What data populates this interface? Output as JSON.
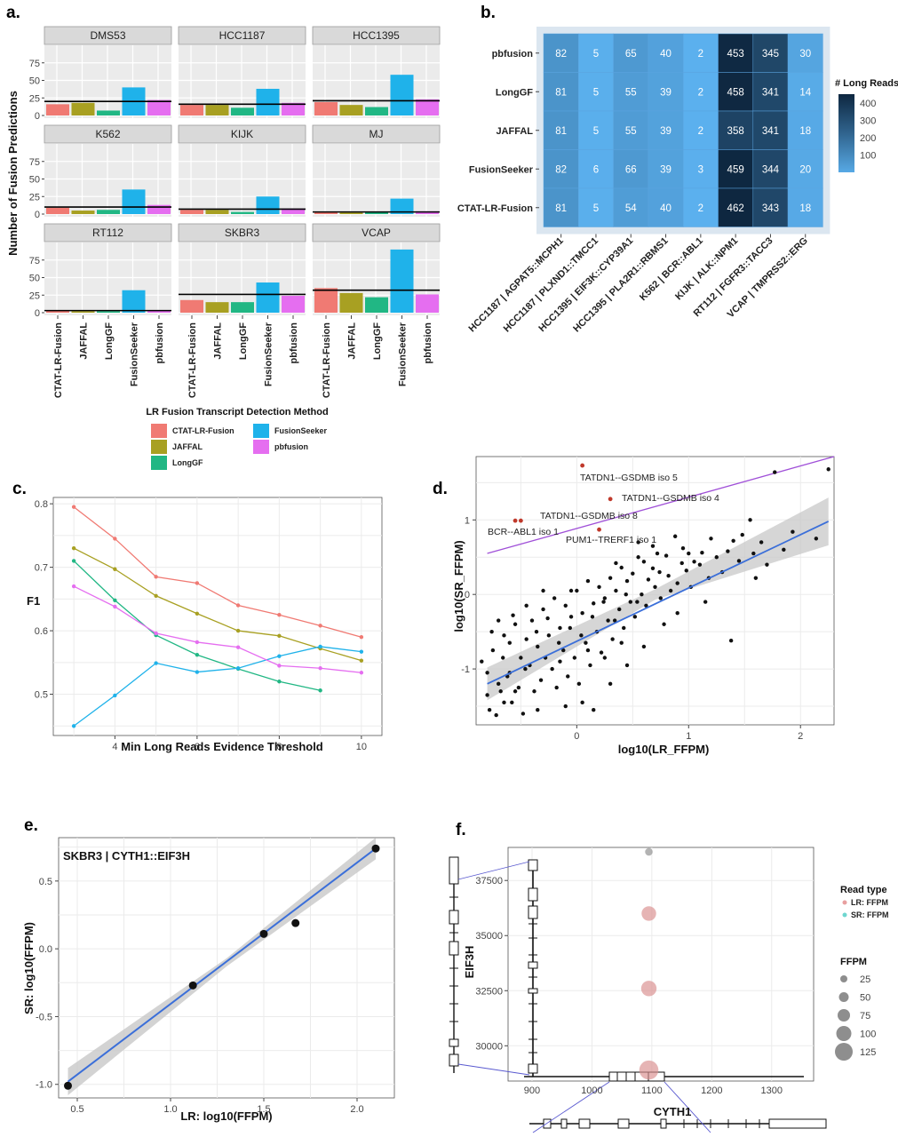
{
  "panel_labels": {
    "a": "a.",
    "b": "b.",
    "c": "c.",
    "d": "d.",
    "e": "e.",
    "f": "f."
  },
  "colors": {
    "CTAT-LR-Fusion": "#f07a73",
    "JAFFAL": "#a8a022",
    "LongGF": "#21b784",
    "FusionSeeker": "#1fb2ea",
    "pbfusion": "#e56ef0",
    "panel_bg": "#ebebeb",
    "strip_bg": "#d9d9d9",
    "heat_low": "#5bb0ee",
    "heat_high": "#0e2740",
    "line_fit": "#3b6fd9",
    "diag_line": "#a050d8",
    "highlight_point": "#c0392b"
  },
  "chart_data": [
    {
      "panel": "a",
      "type": "bar",
      "ylabel": "Number of Fusion Predictions",
      "ylim": [
        0,
        100
      ],
      "yticks": [
        "0",
        "25",
        "50",
        "75"
      ],
      "methods": [
        "CTAT-LR-Fusion",
        "JAFFAL",
        "LongGF",
        "FusionSeeker",
        "pbfusion"
      ],
      "facets": [
        {
          "name": "DMS53",
          "values": [
            16,
            18,
            7,
            40,
            22
          ],
          "hline": 20
        },
        {
          "name": "HCC1187",
          "values": [
            15,
            15,
            11,
            38,
            18
          ],
          "hline": 16
        },
        {
          "name": "HCC1395",
          "values": [
            19,
            15,
            12,
            58,
            23
          ],
          "hline": 21
        },
        {
          "name": "K562",
          "values": [
            9,
            5,
            6,
            35,
            13
          ],
          "hline": 10
        },
        {
          "name": "KIJK",
          "values": [
            6,
            6,
            3,
            25,
            8
          ],
          "hline": 7
        },
        {
          "name": "MJ",
          "values": [
            3,
            2,
            3,
            22,
            4
          ],
          "hline": 3
        },
        {
          "name": "RT112",
          "values": [
            3,
            2,
            2,
            32,
            3
          ],
          "hline": 3
        },
        {
          "name": "SKBR3",
          "values": [
            18,
            15,
            15,
            43,
            24
          ],
          "hline": 26
        },
        {
          "name": "VCAP",
          "values": [
            35,
            28,
            22,
            90,
            26
          ],
          "hline": 32
        }
      ],
      "legend_title": "LR Fusion Transcript Detection Method",
      "legend": [
        "CTAT-LR-Fusion",
        "FusionSeeker",
        "JAFFAL",
        "pbfusion",
        "LongGF"
      ]
    },
    {
      "panel": "b",
      "type": "heatmap",
      "rows": [
        "pbfusion",
        "LongGF",
        "JAFFAL",
        "FusionSeeker",
        "CTAT-LR-Fusion"
      ],
      "columns": [
        "HCC1187 | AGPAT5::MCPH1",
        "HCC1187 | PLXND1::TMCC1",
        "HCC1395 | EIF3K::CYP39A1",
        "HCC1395 | PLA2R1::RBMS1",
        "K562 | BCR::ABL1",
        "KIJK | ALK::NPM1",
        "RT112 | FGFR3::TACC3",
        "VCAP | TMPRSS2::ERG"
      ],
      "values": [
        [
          82,
          5,
          65,
          40,
          2,
          453,
          345,
          30
        ],
        [
          81,
          5,
          55,
          39,
          2,
          458,
          341,
          14
        ],
        [
          81,
          5,
          55,
          39,
          2,
          358,
          341,
          18
        ],
        [
          82,
          6,
          66,
          39,
          3,
          459,
          344,
          20
        ],
        [
          81,
          5,
          54,
          40,
          2,
          462,
          343,
          18
        ]
      ],
      "colorbar_title": "# Long Reads",
      "colorbar_ticks": [
        "400",
        "300",
        "200",
        "100"
      ],
      "range": [
        0,
        470
      ]
    },
    {
      "panel": "c",
      "type": "line",
      "xlabel": "Min Long Reads Evidence Threshold",
      "ylabel": "F1",
      "xlim": [
        2.5,
        10.5
      ],
      "ylim": [
        0.435,
        0.81
      ],
      "xticks": [
        "4",
        "6",
        "8",
        "10"
      ],
      "yticks": [
        "0.5",
        "0.6",
        "0.7",
        "0.8"
      ],
      "series": [
        {
          "name": "CTAT-LR-Fusion",
          "x": [
            3,
            4,
            5,
            6,
            7,
            8,
            9,
            10
          ],
          "y": [
            0.795,
            0.745,
            0.685,
            0.675,
            0.64,
            0.625,
            0.608,
            0.59
          ]
        },
        {
          "name": "JAFFAL",
          "x": [
            3,
            4,
            5,
            6,
            7,
            8,
            9,
            10
          ],
          "y": [
            0.73,
            0.697,
            0.655,
            0.627,
            0.6,
            0.592,
            0.572,
            0.553
          ]
        },
        {
          "name": "LongGF",
          "x": [
            3,
            4,
            5,
            6,
            7,
            8,
            9
          ],
          "y": [
            0.71,
            0.648,
            0.593,
            0.562,
            0.54,
            0.52,
            0.506
          ]
        },
        {
          "name": "FusionSeeker",
          "x": [
            3,
            4,
            5,
            6,
            7,
            8,
            9,
            10
          ],
          "y": [
            0.45,
            0.498,
            0.549,
            0.535,
            0.541,
            0.56,
            0.575,
            0.567
          ]
        },
        {
          "name": "pbfusion",
          "x": [
            3,
            4,
            5,
            6,
            7,
            8,
            9,
            10
          ],
          "y": [
            0.67,
            0.638,
            0.596,
            0.582,
            0.574,
            0.545,
            0.541,
            0.534
          ]
        }
      ]
    },
    {
      "panel": "d",
      "type": "scatter",
      "xlabel": "log10(LR_FFPM)",
      "ylabel": "log10(SR_FFPM)",
      "xlim": [
        -0.9,
        2.3
      ],
      "ylim": [
        -1.75,
        1.85
      ],
      "xticks": [
        "0",
        "1",
        "2"
      ],
      "yticks": [
        "-1",
        "0",
        "1"
      ],
      "fit": {
        "x": [
          -0.8,
          2.25
        ],
        "y": [
          -1.2,
          0.98
        ]
      },
      "diagonal": {
        "x": [
          -0.8,
          2.3
        ],
        "y": [
          0.55,
          1.85
        ]
      },
      "labeled_points": [
        {
          "label": "TATDN1--GSDMB iso 5",
          "x": 0.05,
          "y": 1.73
        },
        {
          "label": "TATDN1--GSDMB iso 4",
          "x": 0.3,
          "y": 1.28
        },
        {
          "label": "TATDN1--GSDMB iso 8",
          "x": -0.5,
          "y": 0.99
        },
        {
          "label": "BCR--ABL1 iso 1",
          "x": -0.55,
          "y": 0.99
        },
        {
          "label": "PUM1--TRERF1 iso 1",
          "x": 0.2,
          "y": 0.87
        }
      ],
      "points": [
        [
          2.25,
          1.68
        ],
        [
          1.77,
          1.64
        ],
        [
          1.93,
          0.84
        ],
        [
          2.14,
          0.75
        ],
        [
          1.55,
          1.0
        ],
        [
          1.65,
          0.7
        ],
        [
          1.48,
          0.8
        ],
        [
          1.58,
          0.55
        ],
        [
          1.4,
          0.72
        ],
        [
          1.35,
          0.58
        ],
        [
          1.2,
          0.75
        ],
        [
          1.12,
          0.56
        ],
        [
          1.05,
          0.44
        ],
        [
          0.95,
          0.62
        ],
        [
          0.88,
          0.78
        ],
        [
          0.8,
          0.52
        ],
        [
          0.72,
          0.55
        ],
        [
          0.68,
          0.35
        ],
        [
          0.6,
          0.44
        ],
        [
          0.55,
          0.7
        ],
        [
          0.5,
          0.28
        ],
        [
          0.45,
          0.18
        ],
        [
          0.4,
          0.36
        ],
        [
          0.35,
          0.05
        ],
        [
          0.3,
          0.22
        ],
        [
          0.25,
          -0.05
        ],
        [
          0.2,
          0.1
        ],
        [
          0.15,
          -0.12
        ],
        [
          0.1,
          0.18
        ],
        [
          0.05,
          -0.25
        ],
        [
          0.0,
          0.05
        ],
        [
          -0.05,
          -0.3
        ],
        [
          -0.1,
          -0.15
        ],
        [
          -0.15,
          -0.45
        ],
        [
          -0.2,
          -0.05
        ],
        [
          -0.25,
          -0.55
        ],
        [
          -0.3,
          -0.2
        ],
        [
          -0.35,
          -0.7
        ],
        [
          -0.4,
          -0.35
        ],
        [
          -0.45,
          -0.6
        ],
        [
          -0.5,
          -0.85
        ],
        [
          -0.55,
          -0.4
        ],
        [
          -0.6,
          -1.05
        ],
        [
          -0.65,
          -0.55
        ],
        [
          -0.7,
          -1.2
        ],
        [
          -0.75,
          -0.75
        ],
        [
          -0.8,
          -1.35
        ],
        [
          -0.78,
          -1.55
        ],
        [
          -0.72,
          -1.62
        ],
        [
          -0.68,
          -1.3
        ],
        [
          -0.62,
          -1.1
        ],
        [
          -0.58,
          -1.45
        ],
        [
          -0.52,
          -1.25
        ],
        [
          -0.48,
          -1.6
        ],
        [
          -0.42,
          -0.95
        ],
        [
          -0.38,
          -1.3
        ],
        [
          -0.32,
          -1.15
        ],
        [
          -0.28,
          -0.85
        ],
        [
          -0.22,
          -1.0
        ],
        [
          -0.18,
          -1.25
        ],
        [
          -0.12,
          -0.75
        ],
        [
          -0.08,
          -1.1
        ],
        [
          -0.02,
          -0.85
        ],
        [
          0.02,
          -1.2
        ],
        [
          0.08,
          -0.65
        ],
        [
          0.12,
          -0.95
        ],
        [
          0.18,
          -0.5
        ],
        [
          0.22,
          -0.78
        ],
        [
          0.28,
          -0.35
        ],
        [
          0.32,
          -0.6
        ],
        [
          0.38,
          -0.2
        ],
        [
          0.42,
          -0.45
        ],
        [
          0.48,
          -0.1
        ],
        [
          0.52,
          -0.3
        ],
        [
          0.58,
          0.0
        ],
        [
          0.62,
          -0.15
        ],
        [
          0.7,
          0.1
        ],
        [
          0.75,
          -0.05
        ],
        [
          0.82,
          0.25
        ],
        [
          0.9,
          0.15
        ],
        [
          0.98,
          0.32
        ],
        [
          1.02,
          0.1
        ],
        [
          1.1,
          0.4
        ],
        [
          1.18,
          0.22
        ],
        [
          1.25,
          0.5
        ],
        [
          1.3,
          0.3
        ],
        [
          1.38,
          -0.62
        ],
        [
          1.45,
          0.45
        ],
        [
          1.6,
          0.22
        ],
        [
          1.7,
          0.4
        ],
        [
          1.85,
          0.6
        ],
        [
          -0.85,
          -0.9
        ],
        [
          -0.8,
          -1.05
        ],
        [
          -0.76,
          -0.5
        ],
        [
          -0.66,
          -0.85
        ],
        [
          -0.57,
          -0.28
        ],
        [
          -0.46,
          -1.0
        ],
        [
          -0.36,
          -0.5
        ],
        [
          -0.26,
          -0.32
        ],
        [
          -0.16,
          -0.65
        ],
        [
          -0.06,
          -0.45
        ],
        [
          0.04,
          -0.55
        ],
        [
          0.14,
          -0.3
        ],
        [
          0.24,
          -0.1
        ],
        [
          0.34,
          -0.35
        ],
        [
          0.44,
          0.0
        ],
        [
          0.54,
          -0.1
        ],
        [
          0.64,
          0.2
        ],
        [
          0.74,
          0.3
        ],
        [
          0.84,
          0.05
        ],
        [
          0.94,
          0.42
        ],
        [
          1.0,
          0.55
        ],
        [
          0.05,
          -1.45
        ],
        [
          -0.1,
          -1.5
        ],
        [
          0.3,
          -1.2
        ],
        [
          -0.35,
          -1.55
        ],
        [
          0.15,
          -1.55
        ],
        [
          0.45,
          -0.95
        ],
        [
          0.6,
          -0.7
        ],
        [
          0.78,
          -0.4
        ],
        [
          -0.6,
          -0.65
        ],
        [
          -0.7,
          -0.35
        ],
        [
          -0.45,
          -0.15
        ],
        [
          -0.3,
          0.05
        ],
        [
          0.55,
          0.5
        ],
        [
          0.68,
          0.65
        ],
        [
          0.35,
          0.42
        ],
        [
          1.15,
          -0.1
        ],
        [
          0.9,
          -0.25
        ],
        [
          -0.05,
          0.05
        ],
        [
          -0.15,
          -0.9
        ],
        [
          0.1,
          -0.75
        ],
        [
          0.25,
          -0.85
        ],
        [
          0.4,
          -0.65
        ],
        [
          -0.55,
          -1.3
        ],
        [
          -0.65,
          -1.45
        ]
      ]
    },
    {
      "panel": "e",
      "type": "scatter",
      "title": "SKBR3 | CYTH1::EIF3H",
      "xlabel": "LR: log10(FFPM)",
      "ylabel": "SR: log10(FFPM)",
      "xlim": [
        0.4,
        2.2
      ],
      "ylim": [
        -1.1,
        0.82
      ],
      "xticks": [
        "0.5",
        "1.0",
        "1.5",
        "2.0"
      ],
      "yticks": [
        "-1.0",
        "-0.5",
        "0.0",
        "0.5"
      ],
      "points": [
        [
          0.45,
          -1.01
        ],
        [
          1.12,
          -0.27
        ],
        [
          1.5,
          0.11
        ],
        [
          1.67,
          0.19
        ],
        [
          2.1,
          0.74
        ]
      ],
      "fit": {
        "x": [
          0.45,
          2.1
        ],
        "y": [
          -0.98,
          0.74
        ]
      }
    },
    {
      "panel": "f",
      "type": "scatter",
      "xlabel": "CYTH1",
      "ylabel": "EIF3H",
      "xlim": [
        860,
        1370
      ],
      "ylim": [
        28400,
        39000
      ],
      "xticks": [
        "900",
        "1000",
        "1100",
        "1200",
        "1300"
      ],
      "yticks": [
        "37500",
        "35000",
        "32500",
        "30000"
      ],
      "points": [
        {
          "x": 1095,
          "y": 38800,
          "ffpm": 8,
          "type": "SR: FFPM"
        },
        {
          "x": 1095,
          "y": 36000,
          "ffpm": 60,
          "type": "LR: FFPM"
        },
        {
          "x": 1095,
          "y": 32600,
          "ffpm": 70,
          "type": "LR: FFPM"
        },
        {
          "x": 1095,
          "y": 28900,
          "ffpm": 120,
          "type": "LR: FFPM"
        }
      ],
      "legend_read_type_title": "Read type",
      "legend_read_types": [
        "LR: FFPM",
        "SR: FFPM"
      ],
      "legend_size_title": "FFPM",
      "legend_sizes": [
        "25",
        "50",
        "75",
        "100",
        "125"
      ]
    }
  ]
}
